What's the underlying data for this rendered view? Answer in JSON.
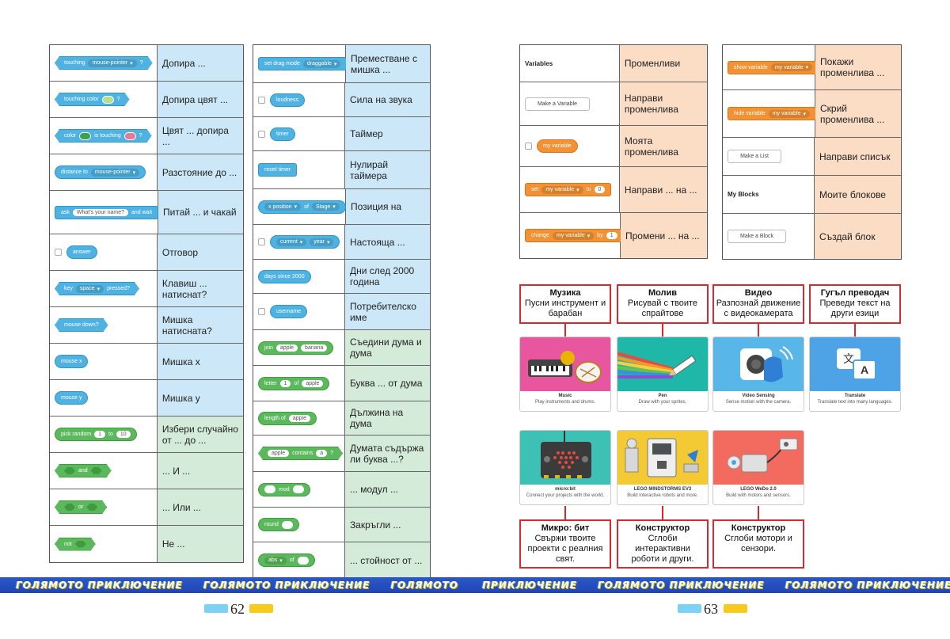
{
  "left_table_1": {
    "rows": [
      {
        "label": "Допира ...",
        "block": {
          "text": "touching",
          "dd": "mouse-pointer",
          "end": "?"
        }
      },
      {
        "label": "Допира цвят ...",
        "block": {
          "text": "touching color",
          "end": "?"
        }
      },
      {
        "label": "Цвят ... допира ...",
        "block": {
          "text": "color",
          "mid": "is touching",
          "end": "?"
        }
      },
      {
        "label": "Разстояние до ...",
        "block": {
          "text": "distance to",
          "dd": "mouse-pointer"
        }
      },
      {
        "label": "Питай ... и чакай",
        "block": {
          "text": "ask",
          "inp": "What's your name?",
          "end": "and wait"
        }
      },
      {
        "label": "Отговор",
        "block": {
          "text": "answer"
        }
      },
      {
        "label": "Клавиш ... натиснат?",
        "block": {
          "text": "key",
          "dd": "space",
          "end": "pressed?"
        }
      },
      {
        "label": "Мишка натисната?",
        "block": {
          "text": "mouse down?"
        }
      },
      {
        "label": "Мишка x",
        "block": {
          "text": "mouse x"
        }
      },
      {
        "label": "Мишка y",
        "block": {
          "text": "mouse y"
        }
      },
      {
        "label": "Избери случайно от ... до ...",
        "block": {
          "text": "pick random",
          "a": "1",
          "mid": "to",
          "b": "10"
        }
      },
      {
        "label": "... И ...",
        "block": {
          "text": "and"
        }
      },
      {
        "label": "... Или ...",
        "block": {
          "text": "or"
        }
      },
      {
        "label": "Не ...",
        "block": {
          "text": "not"
        }
      }
    ]
  },
  "left_table_2": {
    "rows": [
      {
        "label": "Преместване с мишка ...",
        "block": {
          "text": "set drag mode",
          "dd": "draggable"
        }
      },
      {
        "label": "Сила на звука",
        "block": {
          "text": "loudness"
        }
      },
      {
        "label": "Таймер",
        "block": {
          "text": "timer"
        }
      },
      {
        "label": "Нулирай таймера",
        "block": {
          "text": "reset timer"
        }
      },
      {
        "label": "Позиция на",
        "block": {
          "dd": "x position",
          "mid": "of",
          "dd2": "Stage"
        }
      },
      {
        "label": "Настояща ...",
        "block": {
          "dd": "current",
          "dd2": "year"
        }
      },
      {
        "label": "Дни след 2000 година",
        "block": {
          "text": "days since 2000"
        }
      },
      {
        "label": "Потребителско име",
        "block": {
          "text": "username"
        }
      },
      {
        "label": "Съедини дума и дума",
        "block": {
          "text": "join",
          "a": "apple",
          "b": "banana"
        }
      },
      {
        "label": "Буква ... от дума",
        "block": {
          "text": "letter",
          "a": "1",
          "mid": "of",
          "b": "apple"
        }
      },
      {
        "label": "Дължина на дума",
        "block": {
          "text": "length of",
          "a": "apple"
        }
      },
      {
        "label": "Думата съдържа ли буква ...?",
        "block": {
          "a": "apple",
          "mid": "contains",
          "b": "a",
          "end": "?"
        }
      },
      {
        "label": "... модул ...",
        "block": {
          "mid": "mod"
        }
      },
      {
        "label": "Закръгли ...",
        "block": {
          "text": "round"
        }
      },
      {
        "label": "... стойност от ...",
        "block": {
          "dd": "abs",
          "mid": "of"
        }
      }
    ]
  },
  "right_table_1": {
    "rows": [
      {
        "label": "Променливи",
        "block": {
          "text": "Variables"
        }
      },
      {
        "label": "Направи променлива",
        "block": {
          "text": "Make a Variable"
        }
      },
      {
        "label": "Моята променлива",
        "block": {
          "text": "my variable"
        }
      },
      {
        "label": "Направи ... на ...",
        "block": {
          "text": "set",
          "dd": "my variable",
          "mid": "to",
          "a": "0"
        }
      },
      {
        "label": "Промени ... на ...",
        "block": {
          "text": "change",
          "dd": "my variable",
          "mid": "by",
          "a": "1"
        }
      }
    ]
  },
  "right_table_2": {
    "rows": [
      {
        "label": "Покажи променлива ...",
        "block": {
          "text": "show variable",
          "dd": "my variable"
        }
      },
      {
        "label": "Скрий променлива ...",
        "block": {
          "text": "hide variable",
          "dd": "my variable"
        }
      },
      {
        "label": "Направи списък",
        "block": {
          "text": "Make a List"
        }
      },
      {
        "label": "Моите блокове",
        "block": {
          "text": "My Blocks"
        }
      },
      {
        "label": "Създай блок",
        "block": {
          "text": "Make a Block"
        }
      }
    ]
  },
  "extensions_top": [
    {
      "bg_title": "Музика",
      "bg_desc": "Пусни инструмент и барабан",
      "card_title": "Music",
      "card_desc": "Play instruments and drums."
    },
    {
      "bg_title": "Молив",
      "bg_desc": "Рисувай с твоите спрайтове",
      "card_title": "Pen",
      "card_desc": "Draw with your sprites."
    },
    {
      "bg_title": "Видео",
      "bg_desc": "Разпознай движение с видеокамерата",
      "card_title": "Video Sensing",
      "card_desc": "Sense motion with the camera."
    },
    {
      "bg_title": "Гугъл преводач",
      "bg_desc": "Преведи текст на други езици",
      "card_title": "Translate",
      "card_desc": "Translate text into many languages."
    }
  ],
  "extensions_bottom": [
    {
      "bg_title": "Микро: бит",
      "bg_desc": "Свържи твоите проекти с реалния свят.",
      "card_title": "micro:bit",
      "card_desc": "Connect your projects with the world."
    },
    {
      "bg_title": "Конструктор",
      "bg_desc": "Сглоби интерактивни роботи и други.",
      "card_title": "LEGO MINDSTORMS EV3",
      "card_desc": "Build interactive robots and more."
    },
    {
      "bg_title": "Конструктор",
      "bg_desc": "Сглоби мотори и сензори.",
      "card_title": "LEGO WeDo 2.0",
      "card_desc": "Build with motors and sensors."
    }
  ],
  "translate_glyphs": {
    "source": "文",
    "target": "A"
  },
  "footer": {
    "band_texts": [
      "ГОЛЯМОТО ПРИКЛЮЧЕНИЕ",
      "ГОЛЯМОТО ПРИКЛЮЧЕНИЕ",
      "ГОЛЯМОТО",
      "ПРИКЛЮЧЕНИЕ",
      "ГОЛЯМОТО ПРИКЛЮЧЕНИЕ",
      "ГОЛЯМОТО ПРИКЛЮЧЕНИЕ"
    ],
    "page_left": "62",
    "page_right": "63"
  },
  "colors": {
    "sensing": "#4fb2e0",
    "operators": "#5cb85c",
    "variables": "#f39234",
    "label_border": "#d7292f",
    "band": "#1f45b3"
  }
}
